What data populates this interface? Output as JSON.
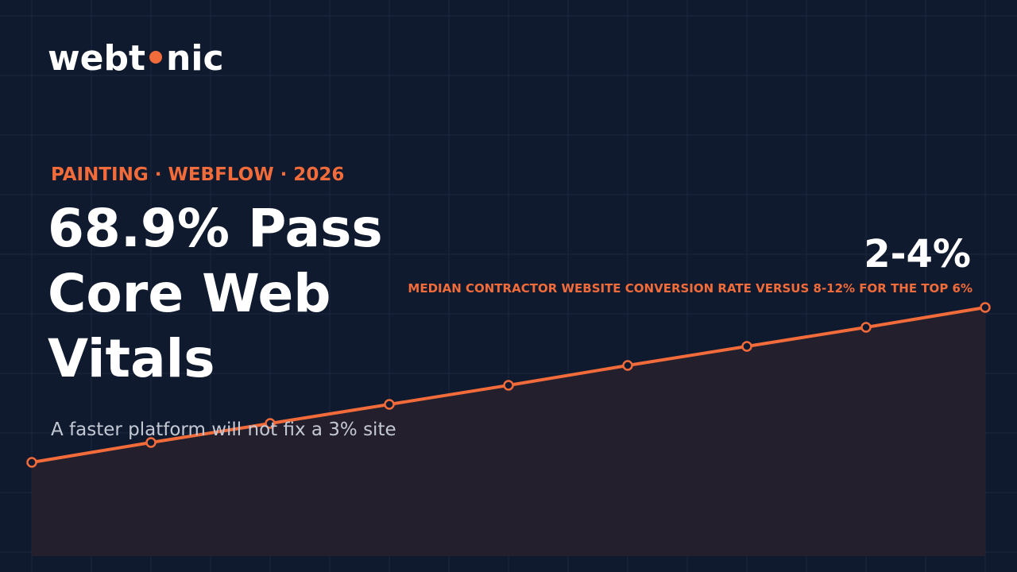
{
  "logo": {
    "left": "webt",
    "right": "nic"
  },
  "eyebrow": "PAINTING · WEBFLOW · 2026",
  "title_lines": [
    "68.9% Pass",
    "Core Web",
    "Vitals"
  ],
  "subtitle": "A faster platform will not fix a 3% site",
  "stat": {
    "value": "2-4%",
    "caption": "MEDIAN CONTRACTOR WEBSITE CONVERSION RATE VERSUS 8-12% FOR THE TOP 6%"
  }
}
